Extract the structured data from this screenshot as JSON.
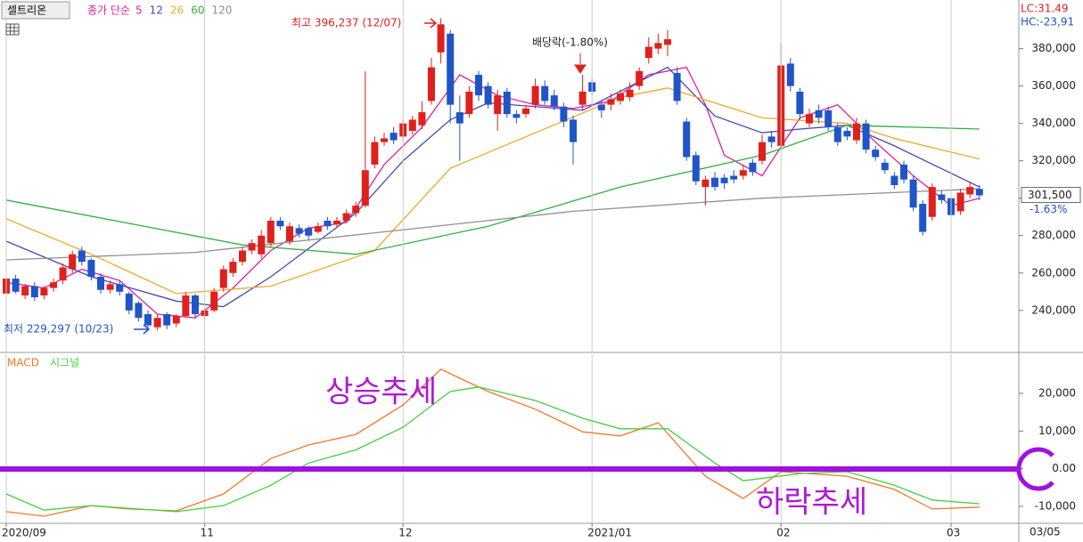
{
  "chart_data": [
    {
      "type": "candlestick",
      "name": "셀트리온",
      "legend_label": "종가 단순",
      "legend_color": "#e0209a",
      "indicators": [
        "LC:31.49",
        "HC:-23,91"
      ],
      "annotations": [
        "최고 396,237 (12/07)",
        "배당락(-1.80%)",
        "최저 229,297 (10/23)"
      ],
      "xlim": [
        -0.66,
        107.17
      ],
      "ylim": [
        218000,
        406000
      ],
      "yticks": [
        {
          "value": 380000,
          "label": "380,000"
        },
        {
          "value": 360000,
          "label": "360,000"
        },
        {
          "value": 340000,
          "label": "340,000"
        },
        {
          "value": 320000,
          "label": "320,000"
        },
        {
          "value": 300000,
          "label": "300,000"
        },
        {
          "value": 280000,
          "label": "280,000"
        },
        {
          "value": 260000,
          "label": "260,000"
        },
        {
          "value": 240000,
          "label": "240,000"
        }
      ],
      "up_color": "#e0201c",
      "down_color": "#1f55c8",
      "last_price": {
        "value": 301500,
        "label": "301,500"
      },
      "change_label": "-1.63%",
      "candles": [
        [
          249000,
          259000,
          247000,
          257000
        ],
        [
          257000,
          259000,
          249000,
          250000
        ],
        [
          248000,
          254000,
          246000,
          253000
        ],
        [
          253000,
          255000,
          245000,
          247000
        ],
        [
          248000,
          253000,
          246000,
          252000
        ],
        [
          252000,
          257000,
          250000,
          255000
        ],
        [
          256000,
          265000,
          254000,
          263000
        ],
        [
          262000,
          272000,
          260000,
          270000
        ],
        [
          272000,
          274000,
          264000,
          266000
        ],
        [
          267000,
          268000,
          256000,
          258000
        ],
        [
          258000,
          260000,
          249000,
          251000
        ],
        [
          251000,
          256000,
          249000,
          254000
        ],
        [
          254000,
          256000,
          248000,
          250000
        ],
        [
          249000,
          250000,
          238000,
          240000
        ],
        [
          244000,
          245000,
          234000,
          236000
        ],
        [
          238000,
          240000,
          230000,
          232000
        ],
        [
          231000,
          238000,
          229297,
          236000
        ],
        [
          238000,
          239000,
          230000,
          232000
        ],
        [
          233000,
          238000,
          231000,
          237000
        ],
        [
          237000,
          250000,
          236000,
          248000
        ],
        [
          248000,
          249000,
          236000,
          238000
        ],
        [
          237000,
          242000,
          235000,
          240000
        ],
        [
          240000,
          252000,
          239000,
          250000
        ],
        [
          252000,
          264000,
          250000,
          262000
        ],
        [
          260000,
          268000,
          258000,
          266000
        ],
        [
          266000,
          274000,
          264000,
          272000
        ],
        [
          272000,
          278000,
          270000,
          276000
        ],
        [
          270000,
          283000,
          268000,
          280000
        ],
        [
          276000,
          290000,
          274000,
          288000
        ],
        [
          288000,
          290000,
          283000,
          285000
        ],
        [
          277000,
          287000,
          275000,
          285000
        ],
        [
          284000,
          286000,
          279000,
          281000
        ],
        [
          284000,
          285000,
          278000,
          280000
        ],
        [
          282000,
          287000,
          281000,
          285000
        ],
        [
          288000,
          290000,
          283000,
          285000
        ],
        [
          286000,
          290000,
          284000,
          288000
        ],
        [
          288000,
          294000,
          287000,
          292000
        ],
        [
          292000,
          298000,
          290000,
          296000
        ],
        [
          296000,
          368000,
          295000,
          315000
        ],
        [
          318000,
          333000,
          316000,
          330000
        ],
        [
          330000,
          335000,
          328000,
          332000
        ],
        [
          335000,
          338000,
          329000,
          331000
        ],
        [
          333000,
          342000,
          331000,
          340000
        ],
        [
          336000,
          344000,
          334000,
          342000
        ],
        [
          339000,
          352000,
          337000,
          346000
        ],
        [
          352000,
          375000,
          350000,
          370000
        ],
        [
          378000,
          396237,
          372000,
          393000
        ],
        [
          388000,
          390000,
          340000,
          350000
        ],
        [
          346000,
          355000,
          320000,
          340000
        ],
        [
          345000,
          360000,
          343000,
          357000
        ],
        [
          366000,
          368000,
          352000,
          355000
        ],
        [
          360000,
          362000,
          348000,
          350000
        ],
        [
          345000,
          358000,
          336000,
          355000
        ],
        [
          357000,
          359000,
          343000,
          345000
        ],
        [
          345000,
          347000,
          340000,
          343000
        ],
        [
          345000,
          350000,
          343000,
          348000
        ],
        [
          350000,
          364000,
          348000,
          360000
        ],
        [
          360000,
          363000,
          350000,
          352000
        ],
        [
          355000,
          358000,
          347000,
          349000
        ],
        [
          349000,
          351000,
          338000,
          341000
        ],
        [
          342000,
          344000,
          318000,
          330000
        ],
        [
          350000,
          366000,
          347000,
          357000
        ],
        [
          362000,
          364000,
          355000,
          357000
        ],
        [
          350000,
          352000,
          343000,
          347000
        ],
        [
          350000,
          356000,
          347000,
          353000
        ],
        [
          352000,
          358000,
          350000,
          356000
        ],
        [
          354000,
          362000,
          352000,
          358000
        ],
        [
          360000,
          370000,
          358000,
          368000
        ],
        [
          375000,
          386000,
          372000,
          381000
        ],
        [
          380000,
          388000,
          377000,
          383000
        ],
        [
          382000,
          390000,
          376000,
          385000
        ],
        [
          367000,
          370000,
          350000,
          352000
        ],
        [
          341000,
          343000,
          320000,
          322000
        ],
        [
          323000,
          325000,
          307000,
          309000
        ],
        [
          306000,
          312000,
          296000,
          310000
        ],
        [
          311000,
          314000,
          304000,
          306000
        ],
        [
          311000,
          313000,
          305000,
          308000
        ],
        [
          312000,
          315000,
          308000,
          310000
        ],
        [
          312000,
          318000,
          310000,
          315000
        ],
        [
          319000,
          321000,
          312000,
          314000
        ],
        [
          320000,
          334000,
          318000,
          330000
        ],
        [
          333000,
          336000,
          327000,
          330000
        ],
        [
          328000,
          383000,
          326000,
          371000
        ],
        [
          372000,
          375000,
          357000,
          360000
        ],
        [
          357000,
          359000,
          342000,
          345000
        ],
        [
          340000,
          348000,
          338000,
          345000
        ],
        [
          347000,
          350000,
          340000,
          343000
        ],
        [
          347000,
          349000,
          336000,
          338000
        ],
        [
          338000,
          340000,
          328000,
          330000
        ],
        [
          336000,
          338000,
          331000,
          333000
        ],
        [
          331000,
          343000,
          329000,
          340000
        ],
        [
          340000,
          342000,
          324000,
          326000
        ],
        [
          326000,
          328000,
          320000,
          322000
        ],
        [
          319000,
          321000,
          313000,
          315000
        ],
        [
          312000,
          314000,
          305000,
          307000
        ],
        [
          318000,
          320000,
          308000,
          310000
        ],
        [
          310000,
          312000,
          293000,
          295000
        ],
        [
          297000,
          299000,
          280000,
          282000
        ],
        [
          290000,
          308000,
          288000,
          306000
        ],
        [
          302000,
          304000,
          297000,
          299000
        ],
        [
          300000,
          302000,
          289000,
          291000
        ],
        [
          293000,
          305000,
          291000,
          303000
        ],
        [
          302000,
          309000,
          300000,
          306000
        ],
        [
          305000,
          307000,
          299000,
          301500
        ]
      ],
      "series": [
        {
          "name": "5",
          "color": "#e0209a",
          "x": [
            0,
            4,
            8,
            12,
            16,
            20,
            24,
            28,
            32,
            36,
            40,
            44,
            48,
            52,
            56,
            60,
            64,
            68,
            72,
            74,
            76,
            80,
            84,
            88,
            92,
            96,
            100,
            103
          ],
          "values": [
            255000,
            252000,
            262000,
            256000,
            238000,
            236000,
            252000,
            272000,
            284000,
            287000,
            318000,
            338000,
            366000,
            355000,
            350000,
            348000,
            352000,
            366000,
            370000,
            350000,
            323000,
            312000,
            343000,
            350000,
            330000,
            312000,
            296000,
            300000
          ]
        },
        {
          "name": "12",
          "color": "#4848b8",
          "x": [
            0,
            9,
            18,
            23,
            28,
            37,
            42,
            47,
            51,
            61,
            70,
            75,
            80,
            84,
            89,
            94,
            103
          ],
          "values": [
            277000,
            258000,
            245000,
            242000,
            258000,
            292000,
            320000,
            342000,
            351000,
            347000,
            370000,
            344000,
            335000,
            337000,
            339000,
            328000,
            306000
          ]
        },
        {
          "name": "26",
          "color": "#f0a828",
          "x": [
            0,
            9,
            18,
            28,
            39,
            47,
            56,
            65,
            70,
            80,
            89,
            94,
            103
          ],
          "values": [
            289000,
            270000,
            249000,
            253000,
            272000,
            316000,
            335000,
            354000,
            359000,
            343000,
            340000,
            332000,
            321000
          ]
        },
        {
          "name": "60",
          "color": "#30b040",
          "x": [
            0,
            25,
            37,
            51,
            65,
            80,
            89,
            103
          ],
          "values": [
            299000,
            275000,
            270000,
            285000,
            306000,
            323000,
            339000,
            337000
          ]
        },
        {
          "name": "120",
          "color": "#909090",
          "x": [
            0,
            20,
            40,
            60,
            80,
            103
          ],
          "values": [
            267000,
            271000,
            282000,
            293000,
            300000,
            305000
          ]
        }
      ]
    },
    {
      "type": "line",
      "annotations": [
        "상승추세",
        "하락추세"
      ],
      "xlim": [
        -0.66,
        107.17
      ],
      "xticks": [
        {
          "value": 0,
          "label": "2020/09"
        },
        {
          "value": 21,
          "label": "11"
        },
        {
          "value": 42,
          "label": "12"
        },
        {
          "value": 62,
          "label": "2021/01"
        },
        {
          "value": 82,
          "label": "02"
        },
        {
          "value": 100,
          "label": "03"
        }
      ],
      "xgrid": true,
      "last_date": "03/05",
      "ylim": [
        -14500,
        30400
      ],
      "yticks": [
        {
          "value": 20000,
          "label": "20,000"
        },
        {
          "value": 10000,
          "label": "10,000"
        },
        {
          "value": 0,
          "label": "0.00"
        },
        {
          "value": -10000,
          "label": "-10,000"
        }
      ],
      "series": [
        {
          "name": "MACD",
          "color": "#f07828",
          "x": [
            0,
            4,
            9,
            13,
            18,
            23,
            28,
            32,
            37,
            42,
            46,
            51,
            56,
            61,
            65,
            69,
            74,
            78,
            82,
            89,
            94,
            98,
            103
          ],
          "values": [
            -11400,
            -12600,
            -9800,
            -10700,
            -11200,
            -6700,
            2700,
            6300,
            9100,
            16900,
            26400,
            20500,
            15800,
            9800,
            8700,
            12200,
            -2000,
            -7900,
            -800,
            -2000,
            -5500,
            -10700,
            -10200
          ]
        },
        {
          "name": "시그널",
          "color": "#40d040",
          "x": [
            0,
            4,
            9,
            18,
            23,
            28,
            32,
            37,
            42,
            47,
            50,
            56,
            61,
            65,
            70,
            75,
            78,
            84,
            89,
            94,
            98,
            103
          ],
          "values": [
            -6700,
            -11000,
            -9800,
            -11400,
            -9800,
            -4400,
            1500,
            5000,
            11000,
            20500,
            21700,
            18100,
            13400,
            10600,
            10600,
            1500,
            -3200,
            -1300,
            -800,
            -4400,
            -8300,
            -9300
          ]
        }
      ]
    }
  ]
}
